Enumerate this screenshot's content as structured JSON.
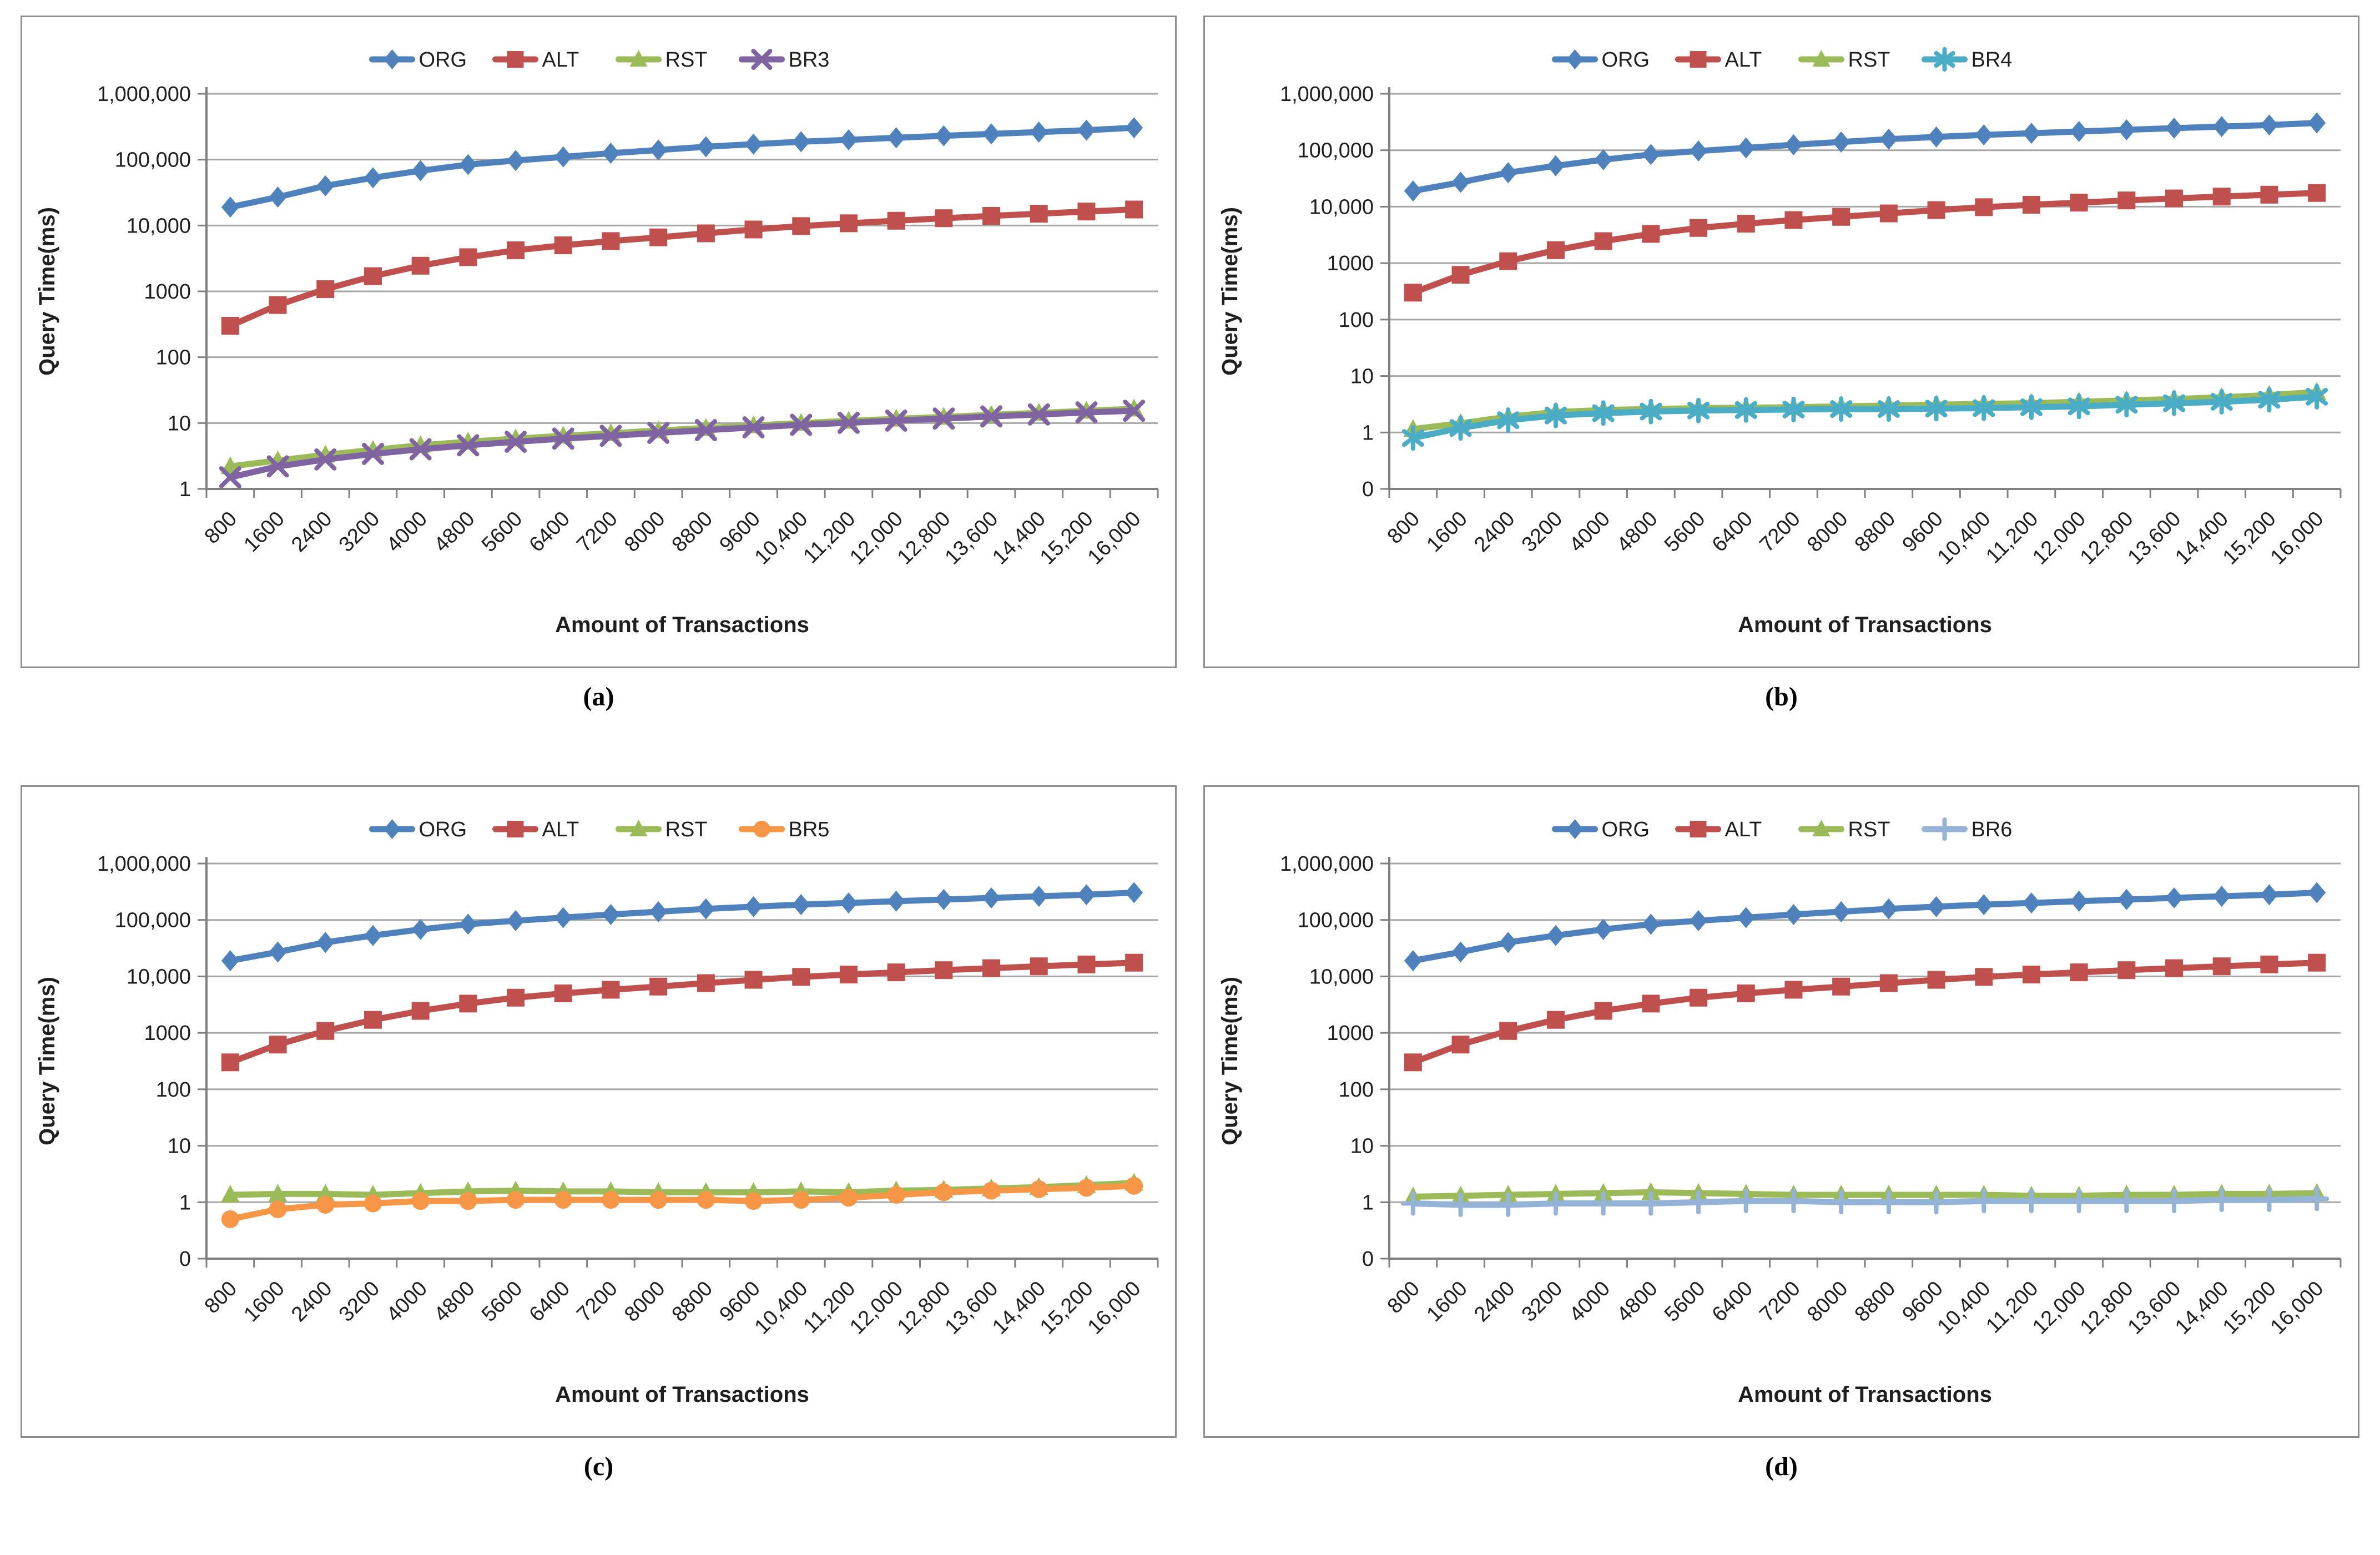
{
  "figure": {
    "captions": [
      "(a)",
      "(b)",
      "(c)",
      "(d)"
    ]
  },
  "chart_data": [
    {
      "type": "line",
      "panel": "a",
      "xlabel": "Amount of Transactions",
      "ylabel": "Query Time(ms)",
      "grid": true,
      "legend_position": "top",
      "y_scale": "log",
      "y_axis": {
        "labels": [
          "1,000,000",
          "100,000",
          "10,000",
          "1000",
          "100",
          "10",
          "1"
        ],
        "exponents": [
          6,
          5,
          4,
          3,
          2,
          1,
          0
        ]
      },
      "x_categories": [
        "800",
        "1600",
        "2400",
        "3200",
        "4000",
        "4800",
        "5600",
        "6400",
        "7200",
        "8000",
        "8800",
        "9600",
        "10,400",
        "11,200",
        "12,000",
        "12,800",
        "13,600",
        "14,400",
        "15,200",
        "16,000"
      ],
      "series": [
        {
          "name": "ORG",
          "color": "#4F81BD",
          "marker": "diamond",
          "values": [
            19000,
            27000,
            40000,
            53000,
            68000,
            84000,
            97000,
            110000,
            125000,
            140000,
            157000,
            172000,
            187000,
            200000,
            215000,
            230000,
            246000,
            262000,
            280000,
            305000
          ]
        },
        {
          "name": "ALT",
          "color": "#C0504D",
          "marker": "square",
          "values": [
            300,
            620,
            1080,
            1700,
            2450,
            3300,
            4200,
            5000,
            5800,
            6600,
            7600,
            8700,
            9800,
            10800,
            11800,
            12900,
            14000,
            15100,
            16300,
            17500
          ]
        },
        {
          "name": "RST",
          "color": "#9BBB59",
          "marker": "triangle",
          "values": [
            2.2,
            2.7,
            3.3,
            3.9,
            4.6,
            5.2,
            5.8,
            6.4,
            7.0,
            7.7,
            8.4,
            9.2,
            10.0,
            10.8,
            11.6,
            12.4,
            13.3,
            14.3,
            15.3,
            16.5
          ]
        },
        {
          "name": "BR3",
          "color": "#8064A2",
          "marker": "x",
          "values": [
            1.5,
            2.2,
            2.8,
            3.4,
            4.0,
            4.6,
            5.2,
            5.8,
            6.4,
            7.1,
            7.8,
            8.6,
            9.4,
            10.1,
            10.9,
            11.7,
            12.6,
            13.5,
            14.5,
            15.4
          ]
        }
      ]
    },
    {
      "type": "line",
      "panel": "b",
      "xlabel": "Amount of Transactions",
      "ylabel": "Query Time(ms)",
      "grid": true,
      "legend_position": "top",
      "y_scale": "log",
      "y_axis": {
        "labels": [
          "1,000,000",
          "100,000",
          "10,000",
          "1000",
          "100",
          "10",
          "1",
          "0"
        ],
        "exponents": [
          6,
          5,
          4,
          3,
          2,
          1,
          0,
          -1
        ]
      },
      "x_categories": [
        "800",
        "1600",
        "2400",
        "3200",
        "4000",
        "4800",
        "5600",
        "6400",
        "7200",
        "8000",
        "8800",
        "9600",
        "10,400",
        "11,200",
        "12,000",
        "12,800",
        "13,600",
        "14,400",
        "15,200",
        "16,000"
      ],
      "series": [
        {
          "name": "ORG",
          "color": "#4F81BD",
          "marker": "diamond",
          "values": [
            19000,
            27000,
            40000,
            53000,
            68000,
            84000,
            97000,
            110000,
            125000,
            140000,
            157000,
            172000,
            187000,
            200000,
            215000,
            230000,
            246000,
            262000,
            280000,
            305000
          ]
        },
        {
          "name": "ALT",
          "color": "#C0504D",
          "marker": "square",
          "values": [
            300,
            620,
            1080,
            1700,
            2450,
            3300,
            4200,
            5000,
            5800,
            6600,
            7600,
            8700,
            9800,
            10800,
            11800,
            12900,
            14000,
            15100,
            16300,
            17500
          ]
        },
        {
          "name": "RST",
          "color": "#9BBB59",
          "marker": "triangle",
          "values": [
            1.15,
            1.45,
            1.9,
            2.3,
            2.5,
            2.6,
            2.7,
            2.75,
            2.8,
            2.9,
            3.0,
            3.1,
            3.2,
            3.3,
            3.5,
            3.7,
            3.9,
            4.2,
            4.6,
            5.2
          ]
        },
        {
          "name": "BR4",
          "color": "#4BACC6",
          "marker": "asterisk",
          "values": [
            0.8,
            1.2,
            1.65,
            2.0,
            2.2,
            2.35,
            2.45,
            2.5,
            2.55,
            2.6,
            2.6,
            2.65,
            2.7,
            2.8,
            2.9,
            3.1,
            3.3,
            3.5,
            3.8,
            4.3
          ]
        }
      ]
    },
    {
      "type": "line",
      "panel": "c",
      "xlabel": "Amount of Transactions",
      "ylabel": "Query Time(ms)",
      "grid": true,
      "legend_position": "top",
      "y_scale": "log",
      "y_axis": {
        "labels": [
          "1,000,000",
          "100,000",
          "10,000",
          "1000",
          "100",
          "10",
          "1",
          "0"
        ],
        "exponents": [
          6,
          5,
          4,
          3,
          2,
          1,
          0,
          -1
        ]
      },
      "x_categories": [
        "800",
        "1600",
        "2400",
        "3200",
        "4000",
        "4800",
        "5600",
        "6400",
        "7200",
        "8000",
        "8800",
        "9600",
        "10,400",
        "11,200",
        "12,000",
        "12,800",
        "13,600",
        "14,400",
        "15,200",
        "16,000"
      ],
      "series": [
        {
          "name": "ORG",
          "color": "#4F81BD",
          "marker": "diamond",
          "values": [
            19000,
            27000,
            40000,
            53000,
            68000,
            84000,
            97000,
            110000,
            125000,
            140000,
            157000,
            172000,
            187000,
            200000,
            215000,
            230000,
            246000,
            262000,
            280000,
            305000
          ]
        },
        {
          "name": "ALT",
          "color": "#C0504D",
          "marker": "square",
          "values": [
            300,
            620,
            1080,
            1700,
            2450,
            3300,
            4200,
            5000,
            5800,
            6600,
            7600,
            8700,
            9800,
            10800,
            11800,
            12900,
            14000,
            15100,
            16300,
            17500
          ]
        },
        {
          "name": "RST",
          "color": "#9BBB59",
          "marker": "triangle",
          "values": [
            1.35,
            1.4,
            1.4,
            1.35,
            1.45,
            1.55,
            1.6,
            1.55,
            1.55,
            1.5,
            1.5,
            1.5,
            1.55,
            1.5,
            1.6,
            1.65,
            1.75,
            1.85,
            2.0,
            2.2
          ]
        },
        {
          "name": "BR5",
          "color": "#F79646",
          "marker": "circle",
          "values": [
            0.5,
            0.75,
            0.9,
            0.95,
            1.05,
            1.05,
            1.1,
            1.1,
            1.1,
            1.1,
            1.1,
            1.05,
            1.1,
            1.2,
            1.35,
            1.5,
            1.6,
            1.7,
            1.8,
            1.95
          ]
        }
      ]
    },
    {
      "type": "line",
      "panel": "d",
      "xlabel": "Amount of Transactions",
      "ylabel": "Query Time(ms)",
      "grid": true,
      "legend_position": "top",
      "y_scale": "log",
      "y_axis": {
        "labels": [
          "1,000,000",
          "100,000",
          "10,000",
          "1000",
          "100",
          "10",
          "1",
          "0"
        ],
        "exponents": [
          6,
          5,
          4,
          3,
          2,
          1,
          0,
          -1
        ]
      },
      "x_categories": [
        "800",
        "1600",
        "2400",
        "3200",
        "4000",
        "4800",
        "5600",
        "6400",
        "7200",
        "8000",
        "8800",
        "9600",
        "10,400",
        "11,200",
        "12,000",
        "12,800",
        "13,600",
        "14,400",
        "15,200",
        "16,000"
      ],
      "series": [
        {
          "name": "ORG",
          "color": "#4F81BD",
          "marker": "diamond",
          "values": [
            19000,
            27000,
            40000,
            53000,
            68000,
            84000,
            97000,
            110000,
            125000,
            140000,
            157000,
            172000,
            187000,
            200000,
            215000,
            230000,
            246000,
            262000,
            280000,
            305000
          ]
        },
        {
          "name": "ALT",
          "color": "#C0504D",
          "marker": "square",
          "values": [
            300,
            620,
            1080,
            1700,
            2450,
            3300,
            4200,
            5000,
            5800,
            6600,
            7600,
            8700,
            9800,
            10800,
            11800,
            12900,
            14000,
            15100,
            16300,
            17500
          ]
        },
        {
          "name": "RST",
          "color": "#9BBB59",
          "marker": "triangle",
          "values": [
            1.25,
            1.3,
            1.35,
            1.4,
            1.45,
            1.5,
            1.45,
            1.4,
            1.35,
            1.35,
            1.35,
            1.35,
            1.35,
            1.3,
            1.3,
            1.35,
            1.35,
            1.4,
            1.4,
            1.45
          ]
        },
        {
          "name": "BR6",
          "color": "#95B3D7",
          "marker": "plus",
          "values": [
            0.95,
            0.9,
            0.9,
            0.95,
            0.95,
            0.95,
            1.0,
            1.05,
            1.05,
            1.0,
            1.0,
            1.0,
            1.05,
            1.05,
            1.05,
            1.05,
            1.05,
            1.1,
            1.1,
            1.15
          ]
        }
      ]
    }
  ]
}
